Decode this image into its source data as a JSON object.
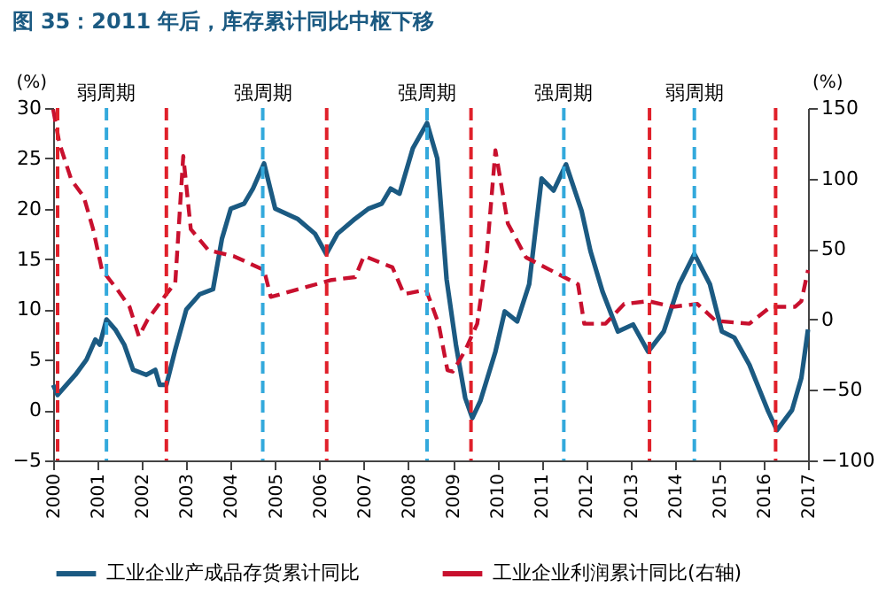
{
  "chart_data": {
    "type": "line",
    "title": "图 35：2011 年后，库存累计同比中枢下移",
    "ylabel": "(%)",
    "y2label": "(%)",
    "xlim": [
      2000,
      2017
    ],
    "xticks": [
      2000,
      2001,
      2002,
      2003,
      2004,
      2005,
      2006,
      2007,
      2008,
      2009,
      2010,
      2011,
      2012,
      2013,
      2014,
      2015,
      2016,
      2017
    ],
    "ylim": [
      -5,
      30
    ],
    "yticks": [
      -5,
      0,
      5,
      10,
      15,
      20,
      25,
      30
    ],
    "y2lim": [
      -100,
      150
    ],
    "y2ticks": [
      -100,
      -50,
      0,
      50,
      100,
      150
    ],
    "legend": "bottom",
    "series": [
      {
        "name": "工业企业产成品存货累计同比",
        "color": "#1b5a82",
        "line_style": "solid",
        "x": [
          2000.0,
          2000.1,
          2000.5,
          2000.75,
          2000.95,
          2001.05,
          2001.2,
          2001.4,
          2001.6,
          2001.8,
          2002.1,
          2002.3,
          2002.4,
          2002.55,
          2002.75,
          2003.0,
          2003.3,
          2003.6,
          2003.8,
          2004.0,
          2004.3,
          2004.5,
          2004.75,
          2005.0,
          2005.5,
          2005.9,
          2006.15,
          2006.4,
          2006.8,
          2007.1,
          2007.4,
          2007.6,
          2007.8,
          2008.1,
          2008.42,
          2008.65,
          2008.86,
          2009.07,
          2009.28,
          2009.44,
          2009.62,
          2009.96,
          2010.17,
          2010.45,
          2010.72,
          2011.0,
          2011.27,
          2011.55,
          2011.9,
          2012.1,
          2012.37,
          2012.72,
          2013.06,
          2013.4,
          2013.75,
          2014.1,
          2014.44,
          2014.79,
          2015.06,
          2015.34,
          2015.68,
          2016.1,
          2016.3,
          2016.64,
          2016.85,
          2017.0
        ],
        "values": [
          2.5,
          1.5,
          3.5,
          5,
          7,
          6.5,
          9,
          8,
          6.5,
          4,
          3.5,
          4,
          2.5,
          2.5,
          6,
          10,
          11.5,
          12,
          17,
          20,
          20.5,
          22,
          24.5,
          20,
          19,
          17.5,
          15.5,
          17.5,
          19,
          20,
          20.5,
          22,
          21.5,
          26,
          28.5,
          25,
          13,
          6.5,
          1.2,
          -0.8,
          0.9,
          5.8,
          9.8,
          8.8,
          12.5,
          23,
          21.8,
          24.4,
          19.8,
          15.8,
          11.8,
          7.8,
          8.5,
          5.8,
          7.8,
          12.5,
          15.5,
          12.5,
          7.8,
          7.2,
          4.5,
          -0.1,
          -2,
          0,
          3.2,
          8
        ]
      },
      {
        "name": "工业企业利润累计同比(右轴)",
        "color": "#c8102e",
        "line_style": "dashed",
        "axis": "y2",
        "x": [
          2000.0,
          2000.14,
          2000.41,
          2000.69,
          2000.9,
          2001.1,
          2001.45,
          2001.72,
          2001.93,
          2002.13,
          2002.55,
          2002.75,
          2002.93,
          2003.1,
          2003.5,
          2004.06,
          2004.75,
          2004.9,
          2005.7,
          2006.27,
          2006.8,
          2007.0,
          2007.64,
          2007.9,
          2008.4,
          2008.68,
          2008.88,
          2009.0,
          2009.28,
          2009.55,
          2009.76,
          2009.96,
          2010.24,
          2010.65,
          2011.2,
          2011.82,
          2011.96,
          2012.44,
          2012.86,
          2013.4,
          2013.96,
          2014.51,
          2014.92,
          2015.68,
          2016.16,
          2016.71,
          2016.85,
          2017.0
        ],
        "values": [
          149,
          125,
          99,
          87,
          64,
          35,
          21,
          9,
          -12,
          0,
          18,
          26,
          116,
          64,
          49,
          45,
          35,
          16,
          23,
          28,
          30,
          45,
          37,
          18,
          21,
          -3,
          -36,
          -37,
          -22,
          -3,
          44,
          120,
          68,
          44,
          35,
          25,
          -3,
          -3,
          11,
          13,
          9,
          11,
          -1,
          -3,
          9,
          9,
          13,
          35
        ]
      }
    ],
    "ref_lines": [
      {
        "axis": "x",
        "value": 2000.1,
        "color": "#e0202a",
        "line_style": "dashed"
      },
      {
        "axis": "x",
        "value": 2001.2,
        "color": "#33a9dc",
        "line_style": "dashed",
        "label": "弱周期"
      },
      {
        "axis": "x",
        "value": 2002.55,
        "color": "#e0202a",
        "line_style": "dashed"
      },
      {
        "axis": "x",
        "value": 2004.72,
        "color": "#33a9dc",
        "line_style": "dashed",
        "label": "强周期"
      },
      {
        "axis": "x",
        "value": 2006.16,
        "color": "#e0202a",
        "line_style": "dashed"
      },
      {
        "axis": "x",
        "value": 2008.42,
        "color": "#33a9dc",
        "line_style": "dashed",
        "label": "强周期"
      },
      {
        "axis": "x",
        "value": 2009.41,
        "color": "#e0202a",
        "line_style": "dashed"
      },
      {
        "axis": "x",
        "value": 2011.5,
        "color": "#33a9dc",
        "line_style": "dashed",
        "label": "强周期"
      },
      {
        "axis": "x",
        "value": 2013.43,
        "color": "#e0202a",
        "line_style": "dashed"
      },
      {
        "axis": "x",
        "value": 2014.44,
        "color": "#33a9dc",
        "line_style": "dashed",
        "label": "弱周期"
      },
      {
        "axis": "x",
        "value": 2016.27,
        "color": "#e0202a",
        "line_style": "dashed"
      }
    ]
  }
}
